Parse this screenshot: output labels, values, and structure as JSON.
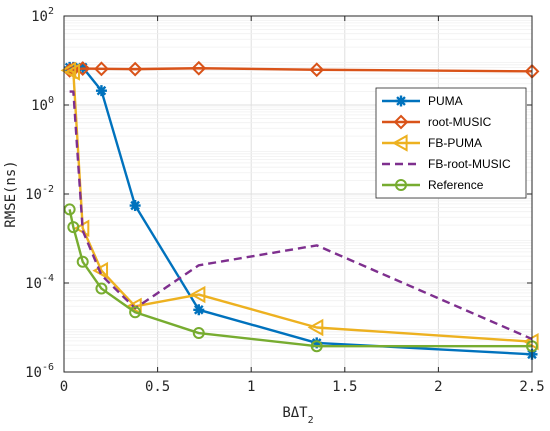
{
  "chart_data": {
    "type": "line",
    "xlabel_parts": {
      "main": "BΔT",
      "sub": "2"
    },
    "ylabel": "RMSE(ns)",
    "xlim": [
      0,
      2.5
    ],
    "ylim_log10": [
      -6,
      2
    ],
    "y_scale": "log",
    "grid": true,
    "legend_position": "right",
    "x_ticks": [
      {
        "v": 0,
        "label": "0"
      },
      {
        "v": 0.5,
        "label": "0.5"
      },
      {
        "v": 1,
        "label": "1"
      },
      {
        "v": 1.5,
        "label": "1.5"
      },
      {
        "v": 2,
        "label": "2"
      },
      {
        "v": 2.5,
        "label": "2.5"
      }
    ],
    "y_ticks": [
      {
        "exp": -6,
        "base": "10",
        "power": "-6"
      },
      {
        "exp": -4,
        "base": "10",
        "power": "-4"
      },
      {
        "exp": -2,
        "base": "10",
        "power": "-2"
      },
      {
        "exp": 0,
        "base": "10",
        "power": "0"
      },
      {
        "exp": 2,
        "base": "10",
        "power": "2"
      }
    ],
    "series": [
      {
        "name": "PUMA",
        "color": "#0072BD",
        "marker": "asterisk",
        "dash": "solid",
        "x": [
          0.03,
          0.05,
          0.1,
          0.2,
          0.38,
          0.72,
          1.35,
          2.5
        ],
        "y": [
          7,
          7,
          7,
          2.1,
          0.0055,
          2.5e-05,
          4.5e-06,
          2.5e-06
        ]
      },
      {
        "name": "root-MUSIC",
        "color": "#D95319",
        "marker": "diamond",
        "dash": "solid",
        "x": [
          0.03,
          0.05,
          0.1,
          0.2,
          0.38,
          0.72,
          1.35,
          2.5
        ],
        "y": [
          6,
          6.3,
          6.6,
          6.5,
          6.4,
          6.7,
          6.2,
          5.7
        ]
      },
      {
        "name": "FB-PUMA",
        "color": "#EDB120",
        "marker": "triangle-left",
        "dash": "solid",
        "x": [
          0.03,
          0.05,
          0.1,
          0.2,
          0.38,
          0.72,
          1.35,
          2.5
        ],
        "y": [
          6,
          5.5,
          0.0017,
          0.00019,
          3e-05,
          5.5e-05,
          1e-05,
          4.8e-06
        ]
      },
      {
        "name": "FB-root-MUSIC",
        "color": "#7E2F8E",
        "marker": "none",
        "dash": "dashed",
        "x": [
          0.03,
          0.05,
          0.1,
          0.2,
          0.38,
          0.72,
          1.35,
          2.5
        ],
        "y": [
          2,
          2,
          0.0015,
          0.00015,
          2.7e-05,
          0.00025,
          0.0007,
          5.5e-06
        ]
      },
      {
        "name": "Reference",
        "color": "#77AC30",
        "marker": "circle",
        "dash": "solid",
        "x": [
          0.03,
          0.05,
          0.1,
          0.2,
          0.38,
          0.72,
          1.35,
          2.5
        ],
        "y": [
          0.0045,
          0.0018,
          0.0003,
          7.5e-05,
          2.2e-05,
          7.5e-06,
          3.8e-06,
          3.8e-06
        ]
      }
    ]
  }
}
